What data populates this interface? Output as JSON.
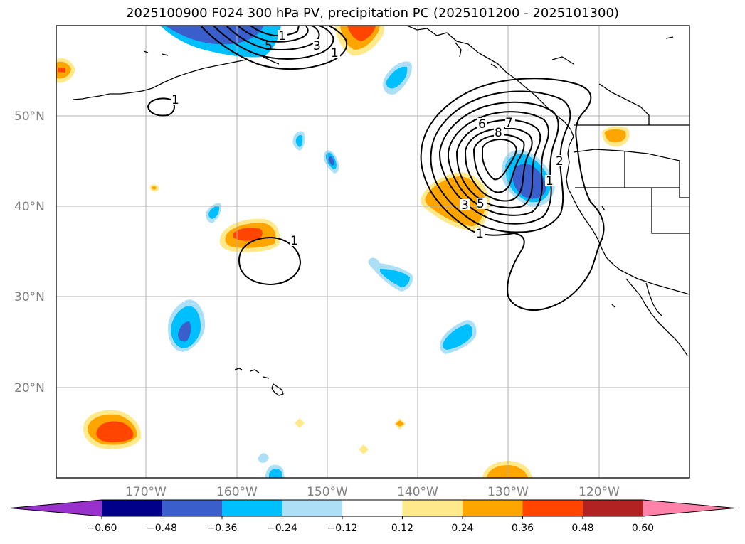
{
  "title": "2025100900 F024 300 hPa PV, precipitation PC (2025101200 - 2025101300)",
  "lat_labels": [
    "50°N",
    "40°N",
    "30°N",
    "20°N"
  ],
  "lon_labels": [
    "170°W",
    "160°W",
    "150°W",
    "140°W",
    "130°W",
    "120°W"
  ],
  "colorbar": {
    "ticks": [
      "−0.60",
      "−0.48",
      "−0.36",
      "−0.24",
      "−0.12",
      "0.12",
      "0.24",
      "0.36",
      "0.48",
      "0.60"
    ],
    "colors": [
      "#9932CC",
      "#00008B",
      "#3A5FCD",
      "#00BFFF",
      "#ADE0F7",
      "#FFFFFF",
      "#FFE98A",
      "#FFA500",
      "#FF4500",
      "#B22222",
      "#FF82AB"
    ]
  },
  "contour_labels": [
    "1",
    "3",
    "1",
    "1",
    "7",
    "6",
    "8",
    "2",
    "1",
    "3",
    "5",
    "1",
    "1",
    "5"
  ]
}
